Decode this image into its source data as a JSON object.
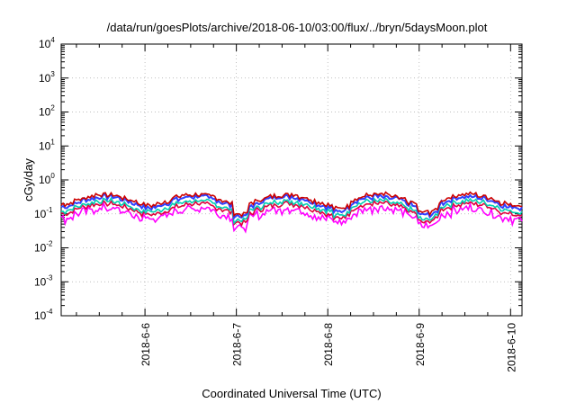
{
  "chart_data": {
    "type": "line",
    "title": "/data/run/goesPlots/archive/2018-06-10/03:00/flux/../bryn/5daysMoon.plot",
    "xlabel": "Coordinated Universal Time (UTC)",
    "ylabel": "cGy/day",
    "yscale": "log",
    "ylim_exponent": [
      -4,
      4
    ],
    "yticks": [
      {
        "base": "10",
        "exp": "4"
      },
      {
        "base": "10",
        "exp": "3"
      },
      {
        "base": "10",
        "exp": "2"
      },
      {
        "base": "10",
        "exp": "1"
      },
      {
        "base": "10",
        "exp": "0"
      },
      {
        "base": "10",
        "exp": "-1"
      },
      {
        "base": "10",
        "exp": "-2"
      },
      {
        "base": "10",
        "exp": "-3"
      },
      {
        "base": "10",
        "exp": "-4"
      }
    ],
    "xrange": [
      "2018-06-05T02:00",
      "2018-06-10T03:00"
    ],
    "xticks": [
      "2018-6-6",
      "2018-6-7",
      "2018-6-8",
      "2018-6-9",
      "2018-6-10"
    ],
    "xtick_dates": [
      "2018-06-06",
      "2018-06-07",
      "2018-06-08",
      "2018-06-09",
      "2018-06-10"
    ],
    "grid": true,
    "legend": "none",
    "series": [
      {
        "color": "#ff00ff",
        "baseline": 0.11
      },
      {
        "color": "#e0003c",
        "baseline": 0.15
      },
      {
        "color": "#00d0b0",
        "baseline": 0.18
      },
      {
        "color": "#2f40ff",
        "baseline": 0.24
      },
      {
        "color": "#cc0000",
        "baseline": 0.28
      }
    ],
    "series_note_values": "Daily-varying dose rates around 0.1-0.4 cGy/day with dips near 2018-06-07 and 2018-06-09"
  }
}
